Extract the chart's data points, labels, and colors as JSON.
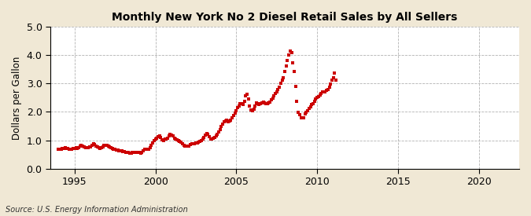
{
  "title": "New York No 2 Diesel Retail Sales by All Sellers",
  "title_prefix": "Monthly ",
  "ylabel": "Dollars per Gallon",
  "source": "Source: U.S. Energy Information Administration",
  "fig_bg_color": "#F0E8D5",
  "plot_bg_color": "#FFFFFF",
  "line_color": "#CC0000",
  "marker": "s",
  "markersize": 3.5,
  "ylim": [
    0.0,
    5.0
  ],
  "yticks": [
    0.0,
    1.0,
    2.0,
    3.0,
    4.0,
    5.0
  ],
  "xlim_start": 1993.5,
  "xlim_end": 2022.5,
  "xticks": [
    1995,
    2000,
    2005,
    2010,
    2015,
    2020
  ],
  "data": [
    [
      1994.0,
      0.69
    ],
    [
      1994.083,
      0.67
    ],
    [
      1994.167,
      0.68
    ],
    [
      1994.25,
      0.7
    ],
    [
      1994.333,
      0.72
    ],
    [
      1994.417,
      0.73
    ],
    [
      1994.5,
      0.72
    ],
    [
      1994.583,
      0.7
    ],
    [
      1994.667,
      0.68
    ],
    [
      1994.75,
      0.67
    ],
    [
      1994.833,
      0.68
    ],
    [
      1994.917,
      0.7
    ],
    [
      1995.0,
      0.72
    ],
    [
      1995.083,
      0.73
    ],
    [
      1995.167,
      0.72
    ],
    [
      1995.25,
      0.74
    ],
    [
      1995.333,
      0.79
    ],
    [
      1995.417,
      0.83
    ],
    [
      1995.5,
      0.8
    ],
    [
      1995.583,
      0.76
    ],
    [
      1995.667,
      0.73
    ],
    [
      1995.75,
      0.73
    ],
    [
      1995.833,
      0.74
    ],
    [
      1995.917,
      0.76
    ],
    [
      1996.0,
      0.76
    ],
    [
      1996.083,
      0.82
    ],
    [
      1996.167,
      0.87
    ],
    [
      1996.25,
      0.85
    ],
    [
      1996.333,
      0.8
    ],
    [
      1996.417,
      0.76
    ],
    [
      1996.5,
      0.73
    ],
    [
      1996.583,
      0.72
    ],
    [
      1996.667,
      0.73
    ],
    [
      1996.75,
      0.76
    ],
    [
      1996.833,
      0.83
    ],
    [
      1996.917,
      0.82
    ],
    [
      1997.0,
      0.81
    ],
    [
      1997.083,
      0.79
    ],
    [
      1997.167,
      0.76
    ],
    [
      1997.25,
      0.73
    ],
    [
      1997.333,
      0.7
    ],
    [
      1997.417,
      0.68
    ],
    [
      1997.5,
      0.67
    ],
    [
      1997.583,
      0.66
    ],
    [
      1997.667,
      0.65
    ],
    [
      1997.75,
      0.64
    ],
    [
      1997.833,
      0.63
    ],
    [
      1997.917,
      0.62
    ],
    [
      1998.0,
      0.6
    ],
    [
      1998.083,
      0.59
    ],
    [
      1998.167,
      0.58
    ],
    [
      1998.25,
      0.57
    ],
    [
      1998.333,
      0.56
    ],
    [
      1998.417,
      0.55
    ],
    [
      1998.5,
      0.55
    ],
    [
      1998.583,
      0.56
    ],
    [
      1998.667,
      0.57
    ],
    [
      1998.75,
      0.57
    ],
    [
      1998.833,
      0.58
    ],
    [
      1998.917,
      0.57
    ],
    [
      1999.0,
      0.56
    ],
    [
      1999.083,
      0.55
    ],
    [
      1999.167,
      0.57
    ],
    [
      1999.25,
      0.62
    ],
    [
      1999.333,
      0.68
    ],
    [
      1999.417,
      0.68
    ],
    [
      1999.5,
      0.67
    ],
    [
      1999.583,
      0.69
    ],
    [
      1999.667,
      0.74
    ],
    [
      1999.75,
      0.82
    ],
    [
      1999.833,
      0.9
    ],
    [
      1999.917,
      1.0
    ],
    [
      2000.0,
      1.05
    ],
    [
      2000.083,
      1.08
    ],
    [
      2000.167,
      1.12
    ],
    [
      2000.25,
      1.14
    ],
    [
      2000.333,
      1.1
    ],
    [
      2000.417,
      1.02
    ],
    [
      2000.5,
      1.0
    ],
    [
      2000.583,
      1.03
    ],
    [
      2000.667,
      1.05
    ],
    [
      2000.75,
      1.08
    ],
    [
      2000.833,
      1.15
    ],
    [
      2000.917,
      1.2
    ],
    [
      2001.0,
      1.18
    ],
    [
      2001.083,
      1.14
    ],
    [
      2001.167,
      1.08
    ],
    [
      2001.25,
      1.04
    ],
    [
      2001.333,
      1.02
    ],
    [
      2001.417,
      1.0
    ],
    [
      2001.5,
      0.97
    ],
    [
      2001.583,
      0.93
    ],
    [
      2001.667,
      0.88
    ],
    [
      2001.75,
      0.83
    ],
    [
      2001.833,
      0.8
    ],
    [
      2001.917,
      0.78
    ],
    [
      2002.0,
      0.78
    ],
    [
      2002.083,
      0.8
    ],
    [
      2002.167,
      0.84
    ],
    [
      2002.25,
      0.87
    ],
    [
      2002.333,
      0.88
    ],
    [
      2002.417,
      0.88
    ],
    [
      2002.5,
      0.89
    ],
    [
      2002.583,
      0.91
    ],
    [
      2002.667,
      0.94
    ],
    [
      2002.75,
      0.97
    ],
    [
      2002.833,
      1.0
    ],
    [
      2002.917,
      1.05
    ],
    [
      2003.0,
      1.1
    ],
    [
      2003.083,
      1.18
    ],
    [
      2003.167,
      1.25
    ],
    [
      2003.25,
      1.22
    ],
    [
      2003.333,
      1.12
    ],
    [
      2003.417,
      1.05
    ],
    [
      2003.5,
      1.03
    ],
    [
      2003.583,
      1.06
    ],
    [
      2003.667,
      1.1
    ],
    [
      2003.75,
      1.15
    ],
    [
      2003.833,
      1.22
    ],
    [
      2003.917,
      1.3
    ],
    [
      2004.0,
      1.38
    ],
    [
      2004.083,
      1.48
    ],
    [
      2004.167,
      1.58
    ],
    [
      2004.25,
      1.65
    ],
    [
      2004.333,
      1.68
    ],
    [
      2004.417,
      1.7
    ],
    [
      2004.5,
      1.65
    ],
    [
      2004.583,
      1.68
    ],
    [
      2004.667,
      1.72
    ],
    [
      2004.75,
      1.8
    ],
    [
      2004.833,
      1.88
    ],
    [
      2004.917,
      1.95
    ],
    [
      2005.0,
      2.05
    ],
    [
      2005.083,
      2.15
    ],
    [
      2005.167,
      2.22
    ],
    [
      2005.25,
      2.3
    ],
    [
      2005.333,
      2.28
    ],
    [
      2005.417,
      2.25
    ],
    [
      2005.5,
      2.38
    ],
    [
      2005.583,
      2.58
    ],
    [
      2005.667,
      2.62
    ],
    [
      2005.75,
      2.45
    ],
    [
      2005.833,
      2.22
    ],
    [
      2005.917,
      2.08
    ],
    [
      2006.0,
      2.05
    ],
    [
      2006.083,
      2.1
    ],
    [
      2006.167,
      2.2
    ],
    [
      2006.25,
      2.32
    ],
    [
      2006.333,
      2.3
    ],
    [
      2006.417,
      2.25
    ],
    [
      2006.5,
      2.28
    ],
    [
      2006.583,
      2.32
    ],
    [
      2006.667,
      2.36
    ],
    [
      2006.75,
      2.33
    ],
    [
      2006.833,
      2.28
    ],
    [
      2006.917,
      2.3
    ],
    [
      2007.0,
      2.33
    ],
    [
      2007.083,
      2.36
    ],
    [
      2007.167,
      2.42
    ],
    [
      2007.25,
      2.48
    ],
    [
      2007.333,
      2.58
    ],
    [
      2007.417,
      2.65
    ],
    [
      2007.5,
      2.72
    ],
    [
      2007.583,
      2.78
    ],
    [
      2007.667,
      2.88
    ],
    [
      2007.75,
      3.02
    ],
    [
      2007.833,
      3.12
    ],
    [
      2007.917,
      3.22
    ],
    [
      2008.0,
      3.42
    ],
    [
      2008.083,
      3.62
    ],
    [
      2008.167,
      3.82
    ],
    [
      2008.25,
      4.02
    ],
    [
      2008.333,
      4.15
    ],
    [
      2008.417,
      4.1
    ],
    [
      2008.5,
      3.72
    ],
    [
      2008.583,
      3.42
    ],
    [
      2008.667,
      2.9
    ],
    [
      2008.75,
      2.38
    ],
    [
      2008.833,
      1.98
    ],
    [
      2008.917,
      1.9
    ],
    [
      2009.0,
      1.8
    ],
    [
      2009.083,
      1.78
    ],
    [
      2009.167,
      1.8
    ],
    [
      2009.25,
      1.92
    ],
    [
      2009.333,
      1.98
    ],
    [
      2009.417,
      2.05
    ],
    [
      2009.5,
      2.12
    ],
    [
      2009.583,
      2.18
    ],
    [
      2009.667,
      2.25
    ],
    [
      2009.75,
      2.3
    ],
    [
      2009.833,
      2.38
    ],
    [
      2009.917,
      2.45
    ],
    [
      2010.0,
      2.5
    ],
    [
      2010.083,
      2.55
    ],
    [
      2010.167,
      2.6
    ],
    [
      2010.25,
      2.65
    ],
    [
      2010.333,
      2.7
    ],
    [
      2010.417,
      2.72
    ],
    [
      2010.5,
      2.72
    ],
    [
      2010.583,
      2.75
    ],
    [
      2010.667,
      2.78
    ],
    [
      2010.75,
      2.88
    ],
    [
      2010.833,
      2.98
    ],
    [
      2010.917,
      3.12
    ],
    [
      2011.0,
      3.2
    ],
    [
      2011.083,
      3.38
    ],
    [
      2011.167,
      3.12
    ]
  ]
}
